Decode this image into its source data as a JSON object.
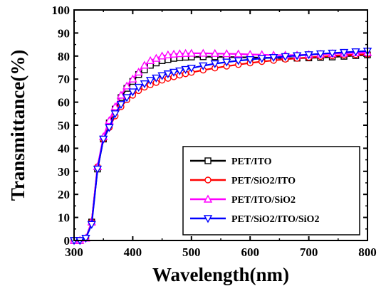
{
  "chart_data": {
    "type": "line",
    "xlabel": "Wavelength(nm)",
    "ylabel": "Transmittance(%)",
    "xlim": [
      300,
      800
    ],
    "ylim": [
      0,
      100
    ],
    "xticks": [
      300,
      400,
      500,
      600,
      700,
      800
    ],
    "yticks": [
      0,
      10,
      20,
      30,
      40,
      50,
      60,
      70,
      80,
      90,
      100
    ],
    "grid": false,
    "legend_position": "bottom-right",
    "series": [
      {
        "name": "PET/ITO",
        "color": "#000000",
        "marker": "square",
        "x": [
          300,
          310,
          320,
          330,
          340,
          350,
          360,
          370,
          380,
          390,
          400,
          410,
          420,
          430,
          440,
          450,
          460,
          470,
          480,
          490,
          500,
          520,
          540,
          560,
          580,
          600,
          620,
          640,
          660,
          680,
          700,
          720,
          740,
          760,
          780,
          800
        ],
        "y": [
          0,
          0,
          1,
          8,
          31,
          44,
          51,
          57,
          62,
          66,
          69,
          72,
          74,
          76,
          77,
          78,
          78.5,
          79,
          79.3,
          79.5,
          79.6,
          79.7,
          79.7,
          79.6,
          79.5,
          79.4,
          79.3,
          79.2,
          79.1,
          79.1,
          79.2,
          79.4,
          79.6,
          79.9,
          80.2,
          80.5
        ]
      },
      {
        "name": "PET/SiO2/ITO",
        "color": "#ff0000",
        "marker": "circle",
        "x": [
          300,
          310,
          320,
          330,
          340,
          350,
          360,
          370,
          380,
          390,
          400,
          410,
          420,
          430,
          440,
          450,
          460,
          470,
          480,
          490,
          500,
          520,
          540,
          560,
          580,
          600,
          620,
          640,
          660,
          680,
          700,
          720,
          740,
          760,
          780,
          800
        ],
        "y": [
          0,
          0,
          1,
          8,
          32,
          44,
          49,
          54,
          58,
          61,
          63,
          65,
          66.5,
          67.5,
          68.5,
          69.5,
          70.3,
          71,
          71.7,
          72.3,
          72.9,
          73.9,
          74.8,
          75.6,
          76.3,
          77,
          77.6,
          78.1,
          78.6,
          79,
          79.4,
          79.8,
          80.1,
          80.4,
          80.6,
          80.8
        ]
      },
      {
        "name": "PET/ITO/SiO2",
        "color": "#ff00ff",
        "marker": "triangle-up",
        "x": [
          300,
          310,
          320,
          330,
          340,
          350,
          360,
          370,
          380,
          390,
          400,
          410,
          420,
          430,
          440,
          450,
          460,
          470,
          480,
          490,
          500,
          520,
          540,
          560,
          580,
          600,
          620,
          640,
          660,
          680,
          700,
          720,
          740,
          760,
          780,
          800
        ],
        "y": [
          0,
          0,
          1,
          8,
          32,
          45,
          52,
          58,
          63,
          67,
          70,
          73,
          76,
          78,
          79,
          80,
          80.5,
          80.8,
          81,
          81.1,
          81.2,
          81.2,
          81.1,
          81,
          80.9,
          80.7,
          80.6,
          80.4,
          80.4,
          80.4,
          80.6,
          80.8,
          81,
          81.2,
          81.4,
          81.5
        ]
      },
      {
        "name": "PET/SiO2/ITO/SiO2",
        "color": "#0000ff",
        "marker": "triangle-down",
        "x": [
          300,
          310,
          320,
          330,
          340,
          350,
          360,
          370,
          380,
          390,
          400,
          410,
          420,
          430,
          440,
          450,
          460,
          470,
          480,
          490,
          500,
          520,
          540,
          560,
          580,
          600,
          620,
          640,
          660,
          680,
          700,
          720,
          740,
          760,
          780,
          800
        ],
        "y": [
          0,
          0,
          1,
          7,
          31,
          44,
          49,
          55,
          59,
          62,
          64.5,
          66.5,
          68,
          69.5,
          70.5,
          71.5,
          72.3,
          73,
          73.6,
          74.2,
          74.8,
          75.8,
          76.7,
          77.4,
          78,
          78.5,
          79,
          79.4,
          79.8,
          80.2,
          80.6,
          81,
          81.3,
          81.6,
          81.9,
          82.2
        ]
      }
    ]
  }
}
